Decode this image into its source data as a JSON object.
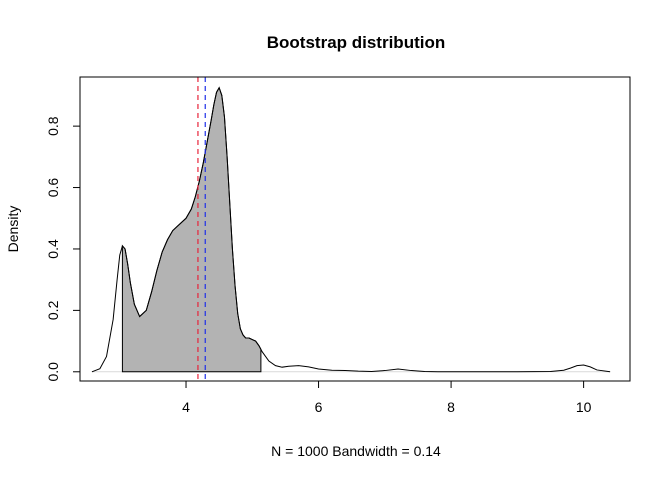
{
  "chart_data": {
    "type": "area",
    "title": "Bootstrap distribution",
    "xlabel": "N = 1000   Bandwidth = 0.14",
    "ylabel": "Density",
    "xlim": [
      2.4,
      10.7
    ],
    "ylim": [
      -0.03,
      0.96
    ],
    "x_ticks": [
      4,
      6,
      8,
      10
    ],
    "x_tick_labels": [
      "4",
      "6",
      "8",
      "10"
    ],
    "y_ticks": [
      0.0,
      0.2,
      0.4,
      0.6,
      0.8
    ],
    "y_tick_labels": [
      "0.0",
      "0.2",
      "0.4",
      "0.6",
      "0.8"
    ],
    "grid": false,
    "legend": "none",
    "series": [
      {
        "x": [
          2.58,
          2.7,
          2.8,
          2.9,
          2.96,
          3.0,
          3.04,
          3.08,
          3.12,
          3.16,
          3.22,
          3.3,
          3.4,
          3.48,
          3.56,
          3.64,
          3.72,
          3.8,
          3.9,
          4.0,
          4.08,
          4.14,
          4.2,
          4.26,
          4.32,
          4.38,
          4.42,
          4.46,
          4.5,
          4.54,
          4.58,
          4.62,
          4.66,
          4.7,
          4.74,
          4.78,
          4.82,
          4.86,
          4.9,
          4.95,
          5.0,
          5.05,
          5.1,
          5.15,
          5.25,
          5.35,
          5.45,
          5.55,
          5.7,
          5.85,
          6.0,
          6.2,
          6.4,
          6.6,
          6.8,
          7.0,
          7.2,
          7.4,
          7.6,
          7.8,
          8.0,
          8.5,
          9.0,
          9.5,
          9.7,
          9.8,
          9.9,
          10.0,
          10.1,
          10.2,
          10.4
        ],
        "y": [
          0.0,
          0.01,
          0.05,
          0.17,
          0.3,
          0.38,
          0.41,
          0.4,
          0.35,
          0.29,
          0.22,
          0.18,
          0.2,
          0.26,
          0.33,
          0.39,
          0.43,
          0.46,
          0.48,
          0.5,
          0.53,
          0.57,
          0.62,
          0.68,
          0.75,
          0.82,
          0.87,
          0.91,
          0.925,
          0.9,
          0.83,
          0.7,
          0.55,
          0.4,
          0.28,
          0.19,
          0.14,
          0.12,
          0.11,
          0.11,
          0.105,
          0.1,
          0.085,
          0.065,
          0.035,
          0.02,
          0.015,
          0.018,
          0.02,
          0.016,
          0.009,
          0.005,
          0.004,
          0.002,
          0.001,
          0.004,
          0.009,
          0.004,
          0.001,
          0.0,
          0.0,
          0.0,
          0.0,
          0.001,
          0.005,
          0.012,
          0.02,
          0.022,
          0.016,
          0.006,
          0.0
        ]
      }
    ],
    "shaded_interval": [
      3.04,
      5.13
    ],
    "shade_color": "#b3b3b3",
    "reference_lines": [
      {
        "x": 4.18,
        "color": "#e8233a",
        "style": "dashed"
      },
      {
        "x": 4.29,
        "color": "#1f2fe8",
        "style": "dashed"
      }
    ],
    "baseline_color": "#d9d9d9",
    "line_color": "#000000"
  }
}
